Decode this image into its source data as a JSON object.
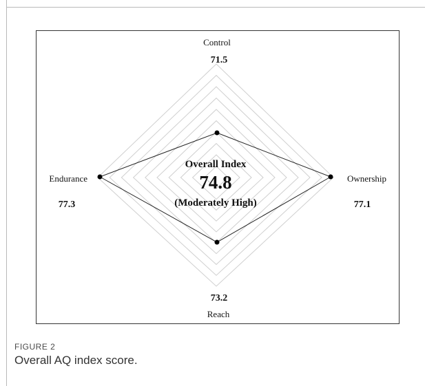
{
  "chart_data": {
    "type": "radar",
    "axes": [
      {
        "name": "Control",
        "value": 71.5
      },
      {
        "name": "Ownership",
        "value": 77.1
      },
      {
        "name": "Reach",
        "value": 73.2
      },
      {
        "name": "Endurance",
        "value": 77.3
      }
    ],
    "value_labels": [
      "71.5",
      "77.1",
      "73.2",
      "77.3"
    ],
    "rmax": 80,
    "grid_rings": 10,
    "grid": true,
    "center": {
      "heading": "Overall Index",
      "value": "74.8",
      "level": "(Moderately High)"
    }
  },
  "figure": {
    "label": "FIGURE 2",
    "caption": "Overall AQ index score."
  }
}
